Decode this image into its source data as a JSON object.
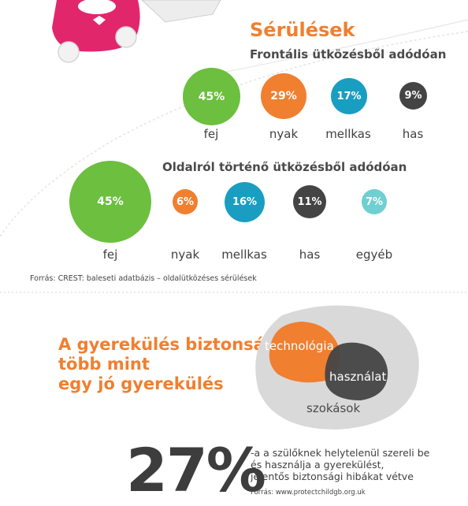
{
  "title": "Sérülések",
  "frontal": {
    "subtitle": "Frontális ütközésből adódóan",
    "items": [
      {
        "value": "45%",
        "label": "fej",
        "color": "#6cbf3f"
      },
      {
        "value": "29%",
        "label": "nyak",
        "color": "#f07f2f"
      },
      {
        "value": "17%",
        "label": "mellkas",
        "color": "#199ec2"
      },
      {
        "value": "9%",
        "label": "has",
        "color": "#444444"
      }
    ]
  },
  "side": {
    "subtitle": "Oldalról történő ütközésből adódóan",
    "items": [
      {
        "value": "45%",
        "label": "fej",
        "color": "#6cbf3f"
      },
      {
        "value": "6%",
        "label": "nyak",
        "color": "#f07f2f"
      },
      {
        "value": "16%",
        "label": "mellkas",
        "color": "#199ec2"
      },
      {
        "value": "11%",
        "label": "has",
        "color": "#444444"
      },
      {
        "value": "7%",
        "label": "egyéb",
        "color": "#6fcfd1"
      }
    ]
  },
  "source1": "Forrás: CREST: baleseti adatbázis – oldalütközéses sérülések",
  "headline": {
    "line1": "A gyerekülés biztonság",
    "line2": "több mint",
    "line3": "egy jó gyerekülés"
  },
  "venn": {
    "orange": "technológia",
    "dark": "használat",
    "outer": "szokások"
  },
  "stat": {
    "value": "27%",
    "line1": "-a a szülőknek helytelenül szereli be",
    "line2": "és használja a gyerekülést,",
    "line3": "jelentős biztonsági hibákat vétve",
    "source": "Forrás: www.protectchildgb.org.uk"
  }
}
